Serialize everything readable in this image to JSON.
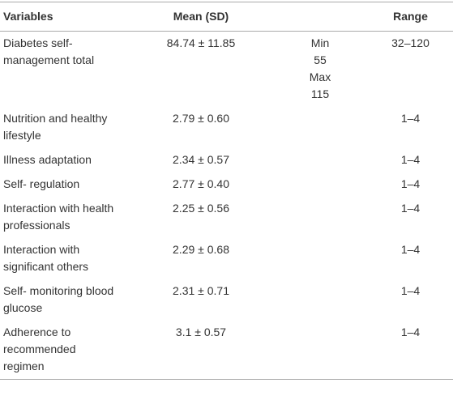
{
  "table": {
    "headers": {
      "variables": "Variables",
      "mean": "Mean (SD)",
      "range": "Range"
    },
    "rows": [
      {
        "variable": "Diabetes self-management total",
        "mean": "84.74 ± 11.85",
        "extra": [
          "Min",
          "55",
          "Max",
          "115"
        ],
        "range": "32–120"
      },
      {
        "variable": "Nutrition and healthy lifestyle",
        "mean": "2.79 ± 0.60",
        "range": "1–4"
      },
      {
        "variable": "Illness adaptation",
        "mean": "2.34 ± 0.57",
        "range": "1–4"
      },
      {
        "variable": "Self- regulation",
        "mean": "2.77 ± 0.40",
        "range": "1–4"
      },
      {
        "variable": "Interaction with health professionals",
        "mean": "2.25 ± 0.56",
        "range": "1–4"
      },
      {
        "variable": "Interaction with significant others",
        "mean": "2.29 ± 0.68",
        "range": "1–4"
      },
      {
        "variable": "Self- monitoring blood glucose",
        "mean": "2.31 ± 0.71",
        "range": "1–4"
      },
      {
        "variable": "Adherence to recommended regimen",
        "mean": "3.1 ± 0.57",
        "range": "1–4"
      }
    ]
  }
}
